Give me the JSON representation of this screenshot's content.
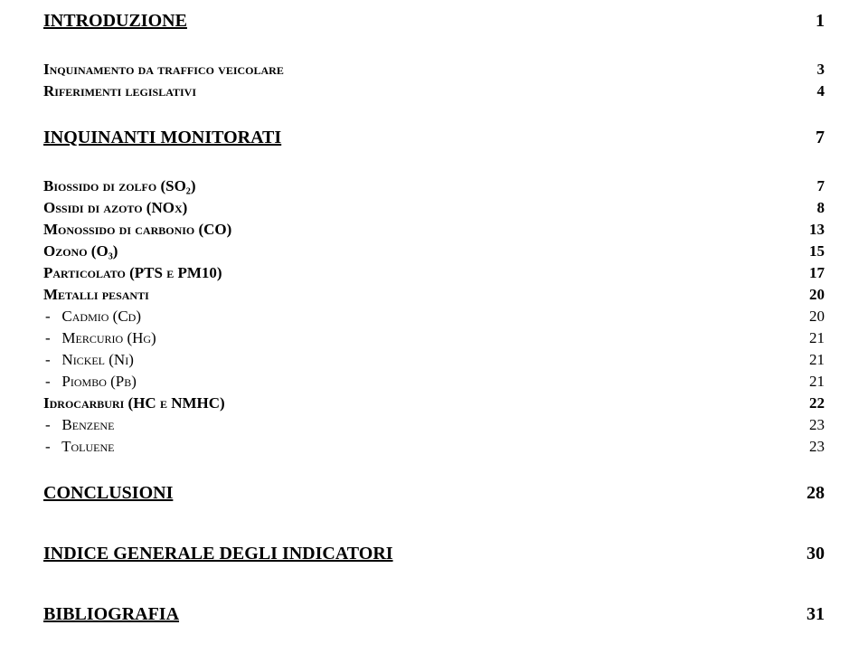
{
  "toc": [
    {
      "level": "h1",
      "title": "INTRODUZIONE",
      "page": "1",
      "spaceBefore": 0
    },
    {
      "level": "h2",
      "title": "Inquinamento da traffico veicolare",
      "page": "3",
      "spaceBefore": 30
    },
    {
      "level": "h2",
      "title": "Riferimenti legislativi",
      "page": "4",
      "spaceBefore": 2
    },
    {
      "level": "h1",
      "title": "INQUINANTI MONITORATI",
      "page": "7",
      "spaceBefore": 30
    },
    {
      "level": "h2",
      "title": "Biossido di zolfo (SO₂)",
      "page": "7",
      "spaceBefore": 30
    },
    {
      "level": "h2",
      "title": "Ossidi di azoto (NOx)",
      "page": "8",
      "spaceBefore": 2
    },
    {
      "level": "h2",
      "title": "Monossido di carbonio (CO)",
      "page": "13",
      "spaceBefore": 2
    },
    {
      "level": "h2",
      "title": "Ozono (O₃)",
      "page": "15",
      "spaceBefore": 2
    },
    {
      "level": "h2",
      "title": "Particolato (PTS e PM10)",
      "page": "17",
      "spaceBefore": 2
    },
    {
      "level": "h2",
      "title": "Metalli pesanti",
      "page": "20",
      "spaceBefore": 2
    },
    {
      "level": "h3",
      "title": "-   Cadmio (Cd)",
      "page": "20",
      "spaceBefore": 2
    },
    {
      "level": "h3",
      "title": "-   Mercurio (Hg)",
      "page": "21",
      "spaceBefore": 2
    },
    {
      "level": "h3",
      "title": "-   Nickel (Ni)",
      "page": "21",
      "spaceBefore": 2
    },
    {
      "level": "h3",
      "title": "-   Piombo (Pb)",
      "page": "21",
      "spaceBefore": 2
    },
    {
      "level": "h2",
      "title": "Idrocarburi (HC e NMHC)",
      "page": "22",
      "spaceBefore": 2
    },
    {
      "level": "h3",
      "title": "-   Benzene",
      "page": "23",
      "spaceBefore": 2
    },
    {
      "level": "h3",
      "title": "-   Toluene",
      "page": "23",
      "spaceBefore": 2
    },
    {
      "level": "h1",
      "title": "CONCLUSIONI",
      "page": "28",
      "spaceBefore": 30
    },
    {
      "level": "h1",
      "title": "INDICE GENERALE DEGLI INDICATORI",
      "page": "30",
      "spaceBefore": 44
    },
    {
      "level": "h1",
      "title": "BIBLIOGRAFIA",
      "page": "31",
      "spaceBefore": 44
    }
  ]
}
